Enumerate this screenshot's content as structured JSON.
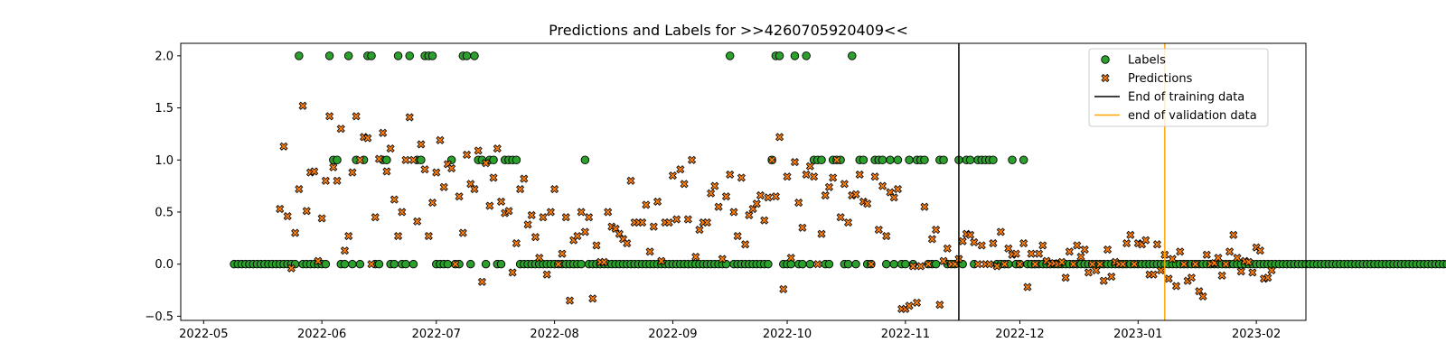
{
  "chart_data": {
    "type": "scatter",
    "title": "Predictions and Labels for >>4260705920409<<",
    "xlabel": "",
    "ylabel": "",
    "x_axis_type": "date",
    "xlim": [
      "2022-04-25",
      "2023-02-14"
    ],
    "ylim": [
      -0.54,
      2.12
    ],
    "x_ticks": [
      "2022-05-01",
      "2022-06-01",
      "2022-07-01",
      "2022-08-01",
      "2022-09-01",
      "2022-10-01",
      "2022-11-01",
      "2022-12-01",
      "2023-01-01",
      "2023-02-01"
    ],
    "x_tick_labels": [
      "2022-05",
      "2022-06",
      "2022-07",
      "2022-08",
      "2022-09",
      "2022-10",
      "2022-11",
      "2022-12",
      "2023-01",
      "2023-02"
    ],
    "y_ticks": [
      -0.5,
      0.0,
      0.5,
      1.0,
      1.5,
      2.0
    ],
    "y_tick_labels": [
      "−0.5",
      "0.0",
      "0.5",
      "1.0",
      "1.5",
      "2.0"
    ],
    "grid": false,
    "legend_position": "top-right",
    "colors": {
      "labels": "#2ca02c",
      "predictions": "#ff7f0e",
      "training_line": "#000000",
      "validation_line": "#ffa500"
    },
    "series": [
      {
        "name": "Labels",
        "marker": "circle",
        "start_date": "2022-05-09",
        "values": [
          0,
          0,
          0,
          0,
          0,
          0,
          0,
          0,
          0,
          0,
          0,
          0,
          0,
          0,
          0,
          0,
          0,
          2,
          0,
          0,
          0,
          0,
          0,
          0,
          0,
          2,
          1,
          1,
          0,
          0,
          2,
          0,
          1,
          0,
          1,
          2,
          2,
          0,
          0,
          1,
          1,
          0,
          0,
          2,
          0,
          0,
          2,
          0,
          1,
          1,
          2,
          2,
          2,
          0,
          0,
          0,
          0,
          1,
          0,
          0,
          2,
          2,
          0,
          2,
          1,
          1,
          0,
          1,
          1,
          0,
          0,
          1,
          1,
          1,
          1,
          0,
          0,
          0,
          0,
          0,
          0,
          0,
          0,
          0,
          0,
          0,
          0,
          0,
          0,
          0,
          0,
          0,
          1,
          0,
          0,
          0,
          0,
          0,
          0,
          0,
          0,
          0,
          0,
          0,
          0,
          0,
          0,
          0,
          0,
          0,
          0,
          0,
          0,
          0,
          0,
          0,
          0,
          0,
          0,
          0,
          0,
          0,
          0,
          0,
          0,
          0,
          0,
          0,
          0,
          0,
          2,
          0,
          0,
          0,
          0,
          0,
          0,
          0,
          0,
          0,
          0,
          1,
          2,
          2,
          0,
          0,
          0,
          2,
          0,
          0,
          2,
          0,
          1,
          1,
          1,
          0,
          0,
          1,
          1,
          1,
          0,
          0,
          2,
          0,
          1,
          1,
          0,
          0,
          1,
          1,
          1,
          0,
          1,
          0,
          1,
          0,
          0,
          1,
          0,
          1,
          1,
          1,
          0,
          0,
          0,
          1,
          1,
          0,
          0,
          0,
          1,
          0,
          1,
          1,
          0,
          1,
          1,
          1,
          1,
          1,
          0,
          0,
          0,
          0,
          1,
          0,
          0,
          1,
          0,
          0,
          0,
          0,
          0,
          0,
          0,
          0,
          0,
          0,
          0,
          0,
          0,
          0,
          0,
          0,
          0,
          0,
          0,
          0,
          0,
          0,
          0,
          0,
          0,
          0,
          0,
          0,
          0,
          0,
          0,
          0,
          0,
          0,
          0,
          0,
          0,
          0,
          0,
          0,
          0,
          0,
          0,
          0,
          0,
          0,
          0,
          0,
          0,
          0,
          0,
          0,
          0,
          0,
          0,
          0,
          0,
          0,
          0,
          0,
          0,
          0,
          0,
          0,
          0,
          0,
          0,
          0,
          0,
          0,
          0,
          0,
          0,
          0,
          0,
          0,
          0,
          0,
          0,
          0,
          0,
          0,
          0,
          0,
          0,
          0,
          0,
          0,
          0,
          0,
          0,
          0,
          0,
          0,
          0,
          0,
          0,
          0,
          0,
          0,
          0,
          0,
          0,
          0,
          0,
          0,
          0,
          0,
          0,
          0,
          0,
          0,
          0,
          0
        ]
      },
      {
        "name": "Predictions",
        "marker": "x",
        "start_date": "2022-05-21",
        "values": [
          0.53,
          1.13,
          0.46,
          -0.04,
          0.3,
          0.72,
          1.52,
          0.51,
          0.88,
          0.89,
          0.03,
          0.44,
          0.8,
          1.42,
          0.93,
          0.8,
          1.3,
          0.13,
          0.27,
          0.88,
          1.42,
          1.0,
          1.22,
          1.21,
          0.0,
          0.45,
          1.01,
          1.26,
          0.89,
          1.11,
          0.62,
          0.27,
          0.5,
          1.0,
          1.41,
          1.0,
          0.41,
          1.15,
          0.91,
          0.27,
          0.59,
          0.88,
          1.19,
          0.74,
          0.96,
          0.92,
          0.0,
          0.65,
          0.3,
          1.05,
          0.77,
          0.72,
          1.09,
          -0.17,
          0.97,
          0.56,
          0.83,
          1.11,
          0.6,
          0.49,
          0.51,
          -0.08,
          0.2,
          0.72,
          0.82,
          0.38,
          0.47,
          0.26,
          0.06,
          0.45,
          -0.1,
          0.5,
          0.72,
          0.0,
          0.1,
          0.45,
          -0.35,
          0.23,
          0.27,
          0.5,
          0.31,
          0.45,
          -0.33,
          0.18,
          0.02,
          0.02,
          0.5,
          0.36,
          0.34,
          0.29,
          0.24,
          0.2,
          0.8,
          0.4,
          0.4,
          0.4,
          0.57,
          0.12,
          0.36,
          0.6,
          0.03,
          0.4,
          0.4,
          0.85,
          0.43,
          0.91,
          0.77,
          0.43,
          1.0,
          0.07,
          0.33,
          0.4,
          0.4,
          0.68,
          0.75,
          0.55,
          0.05,
          0.65,
          0.86,
          0.5,
          0.27,
          0.83,
          0.19,
          0.47,
          0.53,
          0.58,
          0.66,
          0.42,
          0.64,
          1.0,
          0.65,
          1.22,
          -0.24,
          0.84,
          0.06,
          0.98,
          0.59,
          0.35,
          0.86,
          0.94,
          0.84,
          0.0,
          0.29,
          0.66,
          0.74,
          0.83,
          1.0,
          0.45,
          0.77,
          0.4,
          0.66,
          0.67,
          0.86,
          0.6,
          0.58,
          0.0,
          0.84,
          0.33,
          0.75,
          0.27,
          0.69,
          0.64,
          0.72,
          -0.43,
          -0.43,
          -0.4,
          -0.02,
          -0.37,
          -0.02,
          0.55,
          0.0,
          0.24,
          0.33,
          -0.39,
          0.03,
          0.15,
          0.0,
          0.0,
          0.05,
          0.22,
          0.29,
          0.28,
          0.21,
          0.0,
          0.18,
          0.0,
          0.0,
          0.2,
          -0.02,
          0.31,
          0.0,
          0.15,
          0.09,
          0.1,
          0.0,
          0.2,
          -0.22,
          0.1,
          0.0,
          0.1,
          0.18,
          0.03,
          0.0,
          0.01,
          0.0,
          0.02,
          -0.13,
          0.12,
          0.0,
          0.18,
          0.07,
          0.14,
          -0.08,
          0.0,
          -0.06,
          0.0,
          -0.16,
          0.14,
          -0.12,
          0.02,
          0.0,
          0.0,
          0.2,
          0.28,
          0.0,
          0.2,
          0.19,
          0.23,
          -0.1,
          -0.1,
          0.19,
          -0.06,
          0.09,
          -0.14,
          0.05,
          -0.21,
          0.12,
          0.0,
          -0.16,
          -0.13,
          0.0,
          -0.26,
          -0.31,
          0.09,
          0.0,
          0.01,
          0.06,
          -0.11,
          0.0,
          0.12,
          0.28,
          0.06,
          -0.07,
          0.03,
          0.02,
          -0.08,
          0.16,
          0.13,
          -0.14,
          -0.13,
          -0.06
        ]
      }
    ],
    "vlines": [
      {
        "name": "End of training data",
        "x": "2022-11-15",
        "color": "#000000"
      },
      {
        "name": "end of validation data",
        "x": "2023-01-08",
        "color": "#ffa500"
      }
    ],
    "legend": [
      {
        "label": "Labels",
        "kind": "circle"
      },
      {
        "label": "Predictions",
        "kind": "x"
      },
      {
        "label": "End of training data",
        "kind": "line-black"
      },
      {
        "label": "end of validation data",
        "kind": "line-orange"
      }
    ]
  }
}
